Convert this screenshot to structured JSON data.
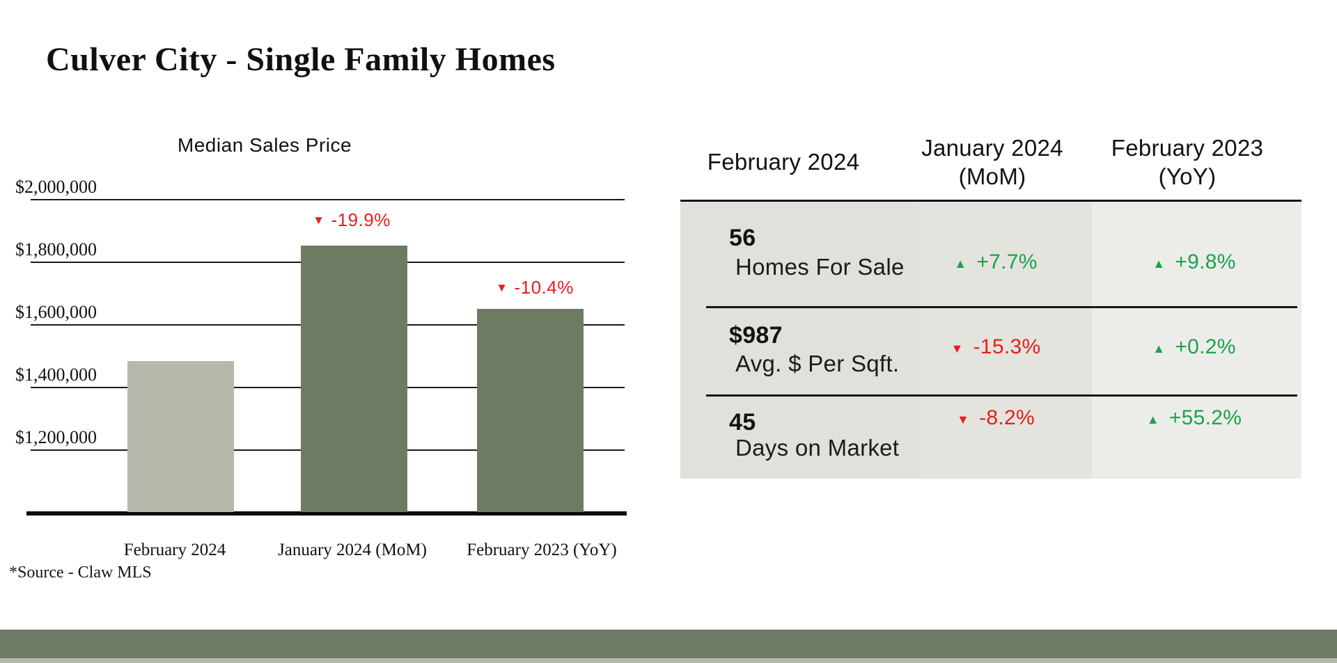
{
  "page": {
    "title": "Culver City - Single Family Homes",
    "source_note": "*Source - Claw MLS"
  },
  "icons": {
    "up_triangle": "▲",
    "down_triangle": "▼"
  },
  "colors": {
    "positive_green": "#1aa24c",
    "negative_red": "#e91d1d",
    "footer_olive": "#6e7a64",
    "bar_light_sage": "#b5b8ab",
    "bar_dark_olive": "#6f7a63",
    "table_col1_bg": "#dfe1da",
    "table_col2_bg": "#e2e4dd",
    "table_col3_bg": "#ecede9"
  },
  "chart_data": {
    "type": "bar",
    "title": "Median Sales Price",
    "categories": [
      "February 2024",
      "January 2024 (MoM)",
      "February 2023 (YoY)"
    ],
    "values": [
      1485000,
      1855000,
      1652000
    ],
    "values_precision": "estimated from gridlines",
    "xlabel": "",
    "ylabel": "",
    "ylim": [
      1000000,
      2100000
    ],
    "ytick_values": [
      2000000,
      1800000,
      1600000,
      1400000,
      1200000
    ],
    "ytick_labels": [
      "$2,000,000",
      "$1,800,000",
      "$1,600,000",
      "$1,400,000",
      "$1,200,000"
    ],
    "grid": true,
    "legend": "none",
    "bar_colors": [
      "#b5b8ab",
      "#6f7a63",
      "#6f7a63"
    ],
    "annotations": [
      {
        "category": "January 2024 (MoM)",
        "direction": "down",
        "text": "-19.9%"
      },
      {
        "category": "February 2023 (YoY)",
        "direction": "down",
        "text": "-10.4%"
      }
    ]
  },
  "table": {
    "headers": [
      {
        "line1": "February 2024",
        "line2": ""
      },
      {
        "line1": "January 2024",
        "line2": "(MoM)"
      },
      {
        "line1": "February 2023",
        "line2": "(YoY)"
      }
    ],
    "rows": [
      {
        "value": "56",
        "label": "Homes For Sale",
        "mom": {
          "dir": "up",
          "text": "+7.7%"
        },
        "yoy": {
          "dir": "up",
          "text": "+9.8%"
        }
      },
      {
        "value": "$987",
        "label": "Avg. $ Per Sqft.",
        "mom": {
          "dir": "down",
          "text": "-15.3%"
        },
        "yoy": {
          "dir": "up",
          "text": "+0.2%"
        }
      },
      {
        "value": "45",
        "label": "Days on Market",
        "mom": {
          "dir": "down",
          "text": "-8.2%"
        },
        "yoy": {
          "dir": "up",
          "text": "+55.2%"
        }
      }
    ]
  }
}
